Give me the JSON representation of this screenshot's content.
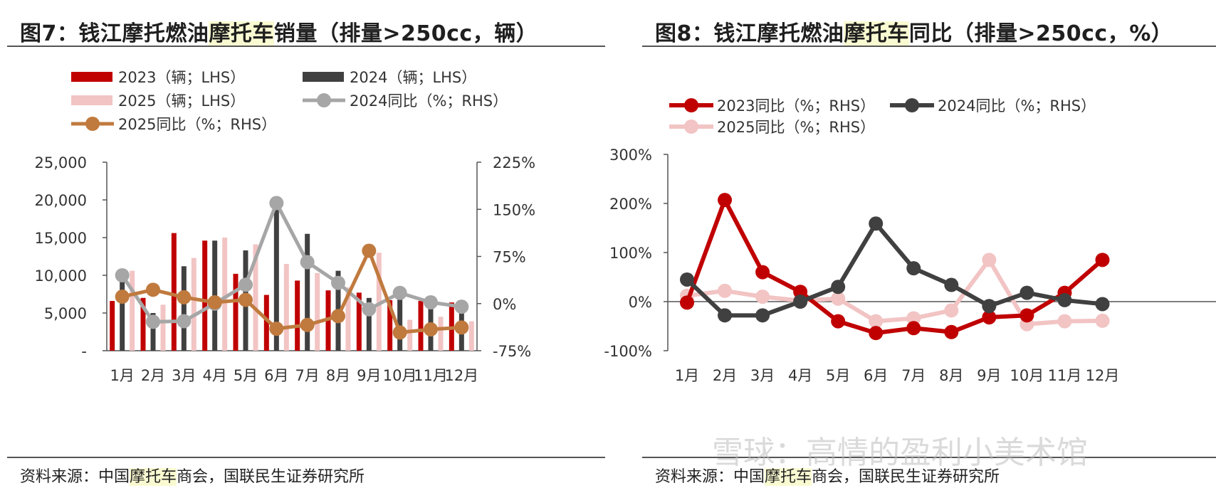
{
  "left": {
    "title_pre": "图7：钱江摩托燃油",
    "title_hl": "摩托车",
    "title_post": "销量（排量>250cc，辆）",
    "source_pre": "资料来源：中国",
    "source_hl": "摩托车",
    "source_post": "商会，国联民生证券研究所"
  },
  "right": {
    "title_pre": "图8：钱江摩托燃油",
    "title_hl": "摩托车",
    "title_post": "同比（排量>250cc，%）",
    "source_pre": "资料来源：中国",
    "source_hl": "摩托车",
    "source_post": "商会，国联民生证券研究所"
  },
  "watermark": "雪球：高情的盈利小美术馆",
  "colors": {
    "red": "#c00000",
    "dark": "#404040",
    "pink": "#f2c4c4",
    "gray": "#a6a6a6",
    "brown": "#c07a3e"
  },
  "chart_data": [
    {
      "type": "bar",
      "categories": [
        "1月",
        "2月",
        "3月",
        "4月",
        "5月",
        "6月",
        "7月",
        "8月",
        "9月",
        "10月",
        "11月",
        "12月"
      ],
      "y_left_ticks": [
        "25,000",
        "20,000",
        "15,000",
        "10,000",
        "5,000",
        "-"
      ],
      "y_right_ticks": [
        "225%",
        "150%",
        "75%",
        "0%",
        "-75%"
      ],
      "ylim_left": [
        0,
        25000
      ],
      "ylim_right": [
        -75,
        225
      ],
      "series": [
        {
          "name": "2023（辆；LHS）",
          "kind": "bar",
          "color": "#c00000",
          "values": [
            6600,
            7000,
            15600,
            14600,
            10200,
            7400,
            9300,
            8000,
            7700,
            6700,
            6600,
            6400
          ]
        },
        {
          "name": "2024（辆；LHS）",
          "kind": "bar",
          "color": "#404040",
          "values": [
            9600,
            5000,
            11200,
            14600,
            13300,
            19200,
            15500,
            10600,
            7000,
            7600,
            6600,
            6100
          ]
        },
        {
          "name": "2025（辆；LHS）",
          "kind": "bar",
          "color": "#f2c4c4",
          "values": [
            10600,
            6100,
            12300,
            15000,
            14100,
            11500,
            10300,
            8400,
            13000,
            4100,
            4500,
            3900
          ]
        },
        {
          "name": "2024同比（%；RHS）",
          "kind": "line",
          "color": "#a6a6a6",
          "values": [
            45,
            -29,
            -28,
            0,
            30,
            160,
            66,
            33,
            -9,
            17,
            2,
            -5
          ]
        },
        {
          "name": "2025同比（%；RHS）",
          "kind": "line",
          "color": "#c07a3e",
          "values": [
            11,
            22,
            10,
            2,
            6,
            -40,
            -34,
            -20,
            84,
            -46,
            -41,
            -38
          ]
        }
      ]
    },
    {
      "type": "line",
      "categories": [
        "1月",
        "2月",
        "3月",
        "4月",
        "5月",
        "6月",
        "7月",
        "8月",
        "9月",
        "10月",
        "11月",
        "12月"
      ],
      "y_ticks": [
        "300%",
        "200%",
        "100%",
        "0%",
        "-100%"
      ],
      "ylim": [
        -100,
        300
      ],
      "series": [
        {
          "name": "2023同比（%；RHS）",
          "color": "#c00000",
          "values": [
            -2,
            207,
            60,
            20,
            -40,
            -64,
            -54,
            -62,
            -32,
            -28,
            18,
            85
          ]
        },
        {
          "name": "2024同比（%；RHS）",
          "color": "#404040",
          "values": [
            45,
            -28,
            -28,
            0,
            30,
            159,
            68,
            34,
            -9,
            18,
            3,
            -5
          ]
        },
        {
          "name": "2025同比（%；RHS）",
          "color": "#f2c4c4",
          "values": [
            12,
            22,
            10,
            2,
            6,
            -40,
            -34,
            -18,
            85,
            -46,
            -40,
            -39
          ]
        }
      ]
    }
  ]
}
